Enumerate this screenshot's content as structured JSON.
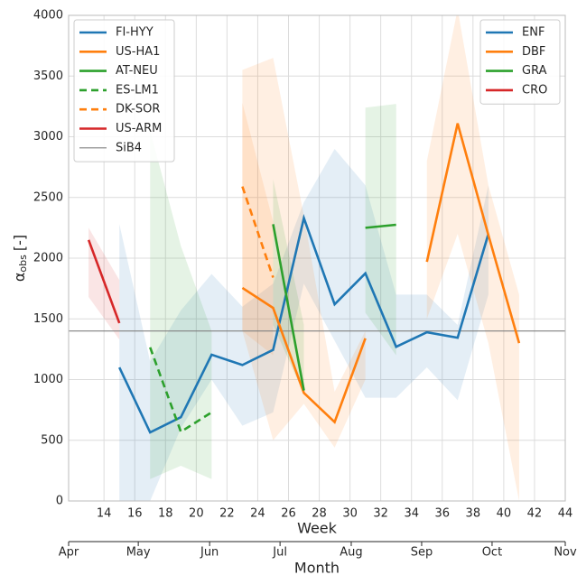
{
  "chart_data": {
    "type": "line",
    "xlabel": "Week",
    "ylabel": {
      "symbol": "α",
      "subscript": "obs",
      "unit": "[-]"
    },
    "x": [
      13,
      15,
      17,
      19,
      21,
      23,
      25,
      27,
      29,
      31,
      33,
      35,
      37,
      39,
      41
    ],
    "xlim": [
      11.7,
      44
    ],
    "xticks": [
      14,
      16,
      18,
      20,
      22,
      24,
      26,
      28,
      30,
      32,
      34,
      36,
      38,
      40,
      42,
      44
    ],
    "ylim": [
      0,
      4000
    ],
    "yticks": [
      0,
      500,
      1000,
      1500,
      2000,
      2500,
      3000,
      3500,
      4000
    ],
    "grid": true,
    "x2label": "Month",
    "x2ticks": [
      {
        "value": 11.7,
        "label": "Apr"
      },
      {
        "value": 16.23,
        "label": "May"
      },
      {
        "value": 20.87,
        "label": "Jun"
      },
      {
        "value": 25.45,
        "label": "Jul"
      },
      {
        "value": 30.08,
        "label": "Aug"
      },
      {
        "value": 34.66,
        "label": "Sep"
      },
      {
        "value": 39.24,
        "label": "Oct"
      },
      {
        "value": 44,
        "label": "Nov"
      }
    ],
    "series": [
      {
        "name": "FI-HYY",
        "color": "#1f77b4",
        "dashed": false,
        "values": [
          null,
          1100,
          565,
          690,
          1205,
          1120,
          1245,
          2330,
          1620,
          1875,
          1270,
          1390,
          1345,
          2200,
          null
        ],
        "lower": [
          null,
          0,
          0,
          600,
          1000,
          620,
          730,
          1790,
          1320,
          850,
          850,
          1100,
          830,
          1700,
          null
        ],
        "upper": [
          null,
          2280,
          1150,
          1570,
          1870,
          1600,
          1790,
          2460,
          2900,
          2600,
          1700,
          1700,
          1450,
          2600,
          null
        ]
      },
      {
        "name": "US-HA1",
        "color": "#ff7f0e",
        "dashed": false,
        "values": [
          null,
          null,
          null,
          null,
          null,
          1755,
          1590,
          890,
          650,
          1340,
          null,
          1970,
          3110,
          2190,
          1300
        ],
        "lower": [
          null,
          null,
          null,
          null,
          null,
          1400,
          500,
          800,
          440,
          1000,
          null,
          1500,
          2200,
          1300,
          0
        ],
        "upper": [
          null,
          null,
          null,
          null,
          null,
          3550,
          3650,
          2350,
          900,
          1400,
          null,
          2800,
          4050,
          2600,
          1700
        ]
      },
      {
        "name": "AT-NEU",
        "color": "#2ca02c",
        "dashed": false,
        "values": [
          null,
          null,
          null,
          null,
          null,
          null,
          2280,
          910,
          null,
          2250,
          2275,
          null,
          null,
          null,
          null
        ],
        "lower": [
          null,
          null,
          null,
          null,
          null,
          null,
          1450,
          880,
          null,
          1550,
          1200,
          null,
          null,
          null,
          null
        ],
        "upper": [
          null,
          null,
          null,
          null,
          null,
          null,
          2650,
          1450,
          null,
          3240,
          3270,
          null,
          null,
          null,
          null
        ]
      },
      {
        "name": "ES-LM1",
        "color": "#2ca02c",
        "dashed": true,
        "values": [
          null,
          null,
          1265,
          570,
          730,
          null,
          null,
          null,
          null,
          null,
          null,
          null,
          null,
          null,
          null
        ],
        "lower": [
          null,
          null,
          180,
          290,
          180,
          null,
          null,
          null,
          null,
          null,
          null,
          null,
          null,
          null,
          null
        ],
        "upper": [
          null,
          null,
          3050,
          2100,
          1400,
          null,
          null,
          null,
          null,
          null,
          null,
          null,
          null,
          null,
          null
        ]
      },
      {
        "name": "DK-SOR",
        "color": "#ff7f0e",
        "dashed": true,
        "values": [
          null,
          null,
          null,
          null,
          null,
          2590,
          1840,
          null,
          null,
          null,
          null,
          null,
          null,
          null,
          null
        ],
        "lower": [
          null,
          null,
          null,
          null,
          null,
          1400,
          1200,
          null,
          null,
          null,
          null,
          null,
          null,
          null,
          null
        ],
        "upper": [
          null,
          null,
          null,
          null,
          null,
          3280,
          2300,
          null,
          null,
          null,
          null,
          null,
          null,
          null,
          null
        ]
      },
      {
        "name": "US-ARM",
        "color": "#d62728",
        "dashed": false,
        "values": [
          2150,
          1465,
          null,
          null,
          null,
          null,
          null,
          null,
          null,
          null,
          null,
          null,
          null,
          null,
          null
        ],
        "lower": [
          1680,
          1330,
          null,
          null,
          null,
          null,
          null,
          null,
          null,
          null,
          null,
          null,
          null,
          null,
          null
        ],
        "upper": [
          2250,
          1820,
          null,
          null,
          null,
          null,
          null,
          null,
          null,
          null,
          null,
          null,
          null,
          null,
          null
        ]
      }
    ],
    "reference": {
      "name": "SiB4",
      "color": "#808080",
      "value": 1400
    },
    "legend2": [
      {
        "name": "ENF",
        "color": "#1f77b4"
      },
      {
        "name": "DBF",
        "color": "#ff7f0e"
      },
      {
        "name": "GRA",
        "color": "#2ca02c"
      },
      {
        "name": "CRO",
        "color": "#d62728"
      }
    ]
  }
}
